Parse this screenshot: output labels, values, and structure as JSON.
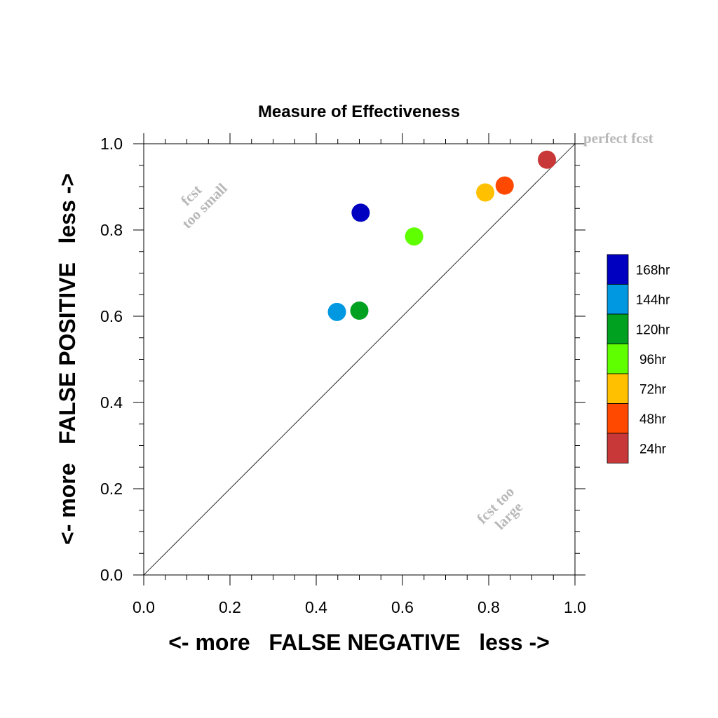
{
  "chart_data": {
    "type": "scatter",
    "title": "Measure of Effectiveness",
    "xlabel": "<- more   FALSE NEGATIVE   less ->",
    "ylabel": "<- more   FALSE POSITIVE   less ->",
    "xlim": [
      0,
      1
    ],
    "ylim": [
      0,
      1
    ],
    "x_tick_labels": [
      "0.0",
      "0.2",
      "0.4",
      "0.6",
      "0.8",
      "1.0"
    ],
    "y_tick_labels": [
      "0.0",
      "0.2",
      "0.4",
      "0.6",
      "0.8",
      "1.0"
    ],
    "grid": false,
    "diagonal_reference_line": true,
    "legend_position": "right",
    "annotations": {
      "perfect": "perfect fcst",
      "too_small": [
        "fcst",
        "too small"
      ],
      "too_large": [
        "fcst too",
        "large"
      ]
    },
    "series": [
      {
        "name": "168hr",
        "color": "#0000c0",
        "x": 0.503,
        "y": 0.84
      },
      {
        "name": "144hr",
        "color": "#0098e0",
        "x": 0.448,
        "y": 0.61
      },
      {
        "name": "120hr",
        "color": "#00a020",
        "x": 0.5,
        "y": 0.613
      },
      {
        "name": "96hr",
        "color": "#60ff00",
        "x": 0.627,
        "y": 0.785
      },
      {
        "name": "72hr",
        "color": "#ffc000",
        "x": 0.792,
        "y": 0.887
      },
      {
        "name": "48hr",
        "color": "#ff4800",
        "x": 0.837,
        "y": 0.903
      },
      {
        "name": "24hr",
        "color": "#c83838",
        "x": 0.935,
        "y": 0.963
      }
    ]
  }
}
